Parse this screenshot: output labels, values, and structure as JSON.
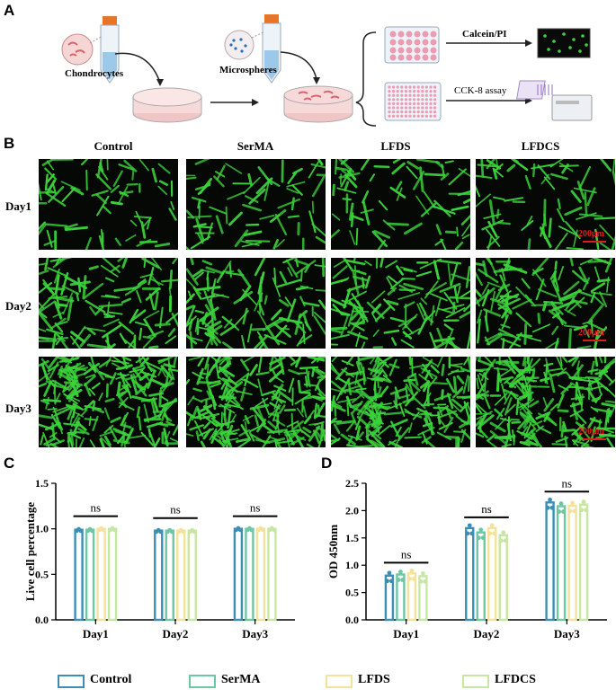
{
  "panel_letters": {
    "a": "A",
    "b": "B",
    "c": "C",
    "d": "D"
  },
  "panel_a": {
    "cells_label": "Chondrocytes",
    "microspheres_label": "Microspheres",
    "assay1_label": "Calcein/PI",
    "assay2_label": "CCK-8 assay"
  },
  "panel_b": {
    "columns": [
      "Control",
      "SerMA",
      "LFDS",
      "LFDCS"
    ],
    "rows": [
      "Day1",
      "Day2",
      "Day3"
    ],
    "scale_label": "200μm",
    "colors": {
      "cell": "#3bd33b",
      "background": "#050805",
      "scale": "#e01b1b"
    }
  },
  "chart_data": [
    {
      "type": "bar",
      "panel": "C",
      "categories": [
        "Day1",
        "Day2",
        "Day3"
      ],
      "series": [
        {
          "name": "Control",
          "values": [
            0.99,
            0.98,
            1.0
          ]
        },
        {
          "name": "SerMA",
          "values": [
            0.99,
            0.98,
            1.0
          ]
        },
        {
          "name": "LFDS",
          "values": [
            1.0,
            0.98,
            1.0
          ]
        },
        {
          "name": "LFDCS",
          "values": [
            1.0,
            0.98,
            1.0
          ]
        }
      ],
      "ylabel": "Live cell percentage",
      "ylim": [
        0,
        1.5
      ],
      "yticks": [
        "0.0",
        "0.5",
        "1.0",
        "1.5"
      ],
      "annotations": [
        "ns",
        "ns",
        "ns"
      ]
    },
    {
      "type": "bar",
      "panel": "D",
      "categories": [
        "Day1",
        "Day2",
        "Day3"
      ],
      "series": [
        {
          "name": "Control",
          "values": [
            0.81,
            1.68,
            2.15
          ]
        },
        {
          "name": "SerMA",
          "values": [
            0.83,
            1.6,
            2.08
          ]
        },
        {
          "name": "LFDS",
          "values": [
            0.85,
            1.68,
            2.09
          ]
        },
        {
          "name": "LFDCS",
          "values": [
            0.8,
            1.55,
            2.11
          ]
        }
      ],
      "ylabel": "OD 450nm",
      "ylim": [
        0,
        2.5
      ],
      "yticks": [
        "0.0",
        "0.5",
        "1.0",
        "1.5",
        "2.0",
        "2.5"
      ],
      "annotations": [
        "ns",
        "ns",
        "ns"
      ]
    }
  ],
  "legend": [
    {
      "name": "Control",
      "color": "#3b8fb5"
    },
    {
      "name": "SerMA",
      "color": "#6cc7a3"
    },
    {
      "name": "LFDS",
      "color": "#f5e29a"
    },
    {
      "name": "LFDCS",
      "color": "#c8e6a3"
    }
  ]
}
